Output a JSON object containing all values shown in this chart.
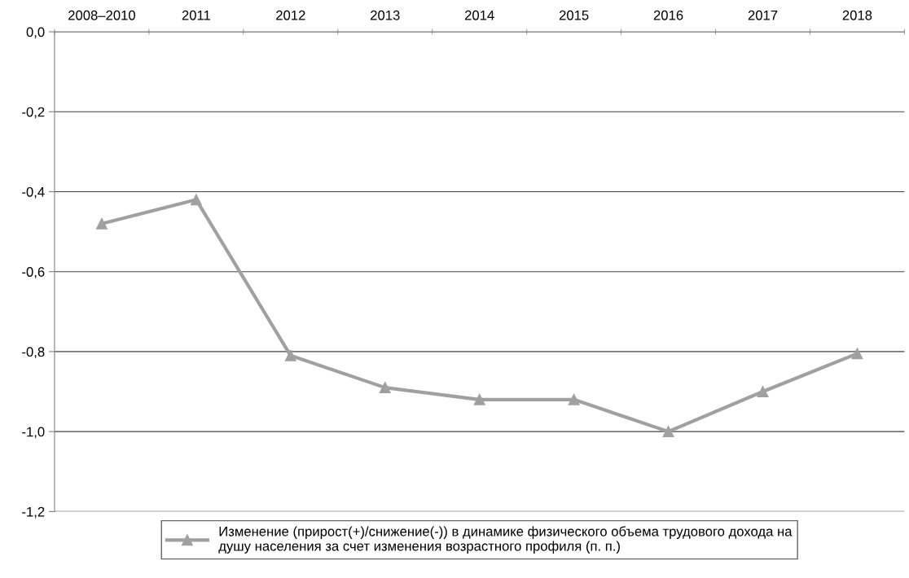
{
  "chart_data": {
    "type": "line",
    "categories": [
      "2008–2010",
      "2011",
      "2012",
      "2013",
      "2014",
      "2015",
      "2016",
      "2017",
      "2018"
    ],
    "series": [
      {
        "name": "Изменение (прирост(+)/снижение(-)) в динамике физического объема трудового дохода на душу населения за счет изменения возрастного профиля (п. п.)",
        "color": "#a0a0a0",
        "values": [
          -0.48,
          -0.42,
          -0.81,
          -0.89,
          -0.92,
          -0.92,
          -1.0,
          -0.9,
          -0.805
        ]
      }
    ],
    "ylim": [
      -1.2,
      0.0
    ],
    "yticks": [
      {
        "value": -1.2,
        "label": "-1,2"
      },
      {
        "value": -1.0,
        "label": "-1,0"
      },
      {
        "value": -0.8,
        "label": "-0,8"
      },
      {
        "value": -0.6,
        "label": "-0,6"
      },
      {
        "value": -0.4,
        "label": "-0,4"
      },
      {
        "value": -0.2,
        "label": "-0,2"
      },
      {
        "value": 0.0,
        "label": "0,0"
      }
    ],
    "grid": "y",
    "legend": "bottom",
    "marker": "triangle",
    "line_style": "solid"
  }
}
